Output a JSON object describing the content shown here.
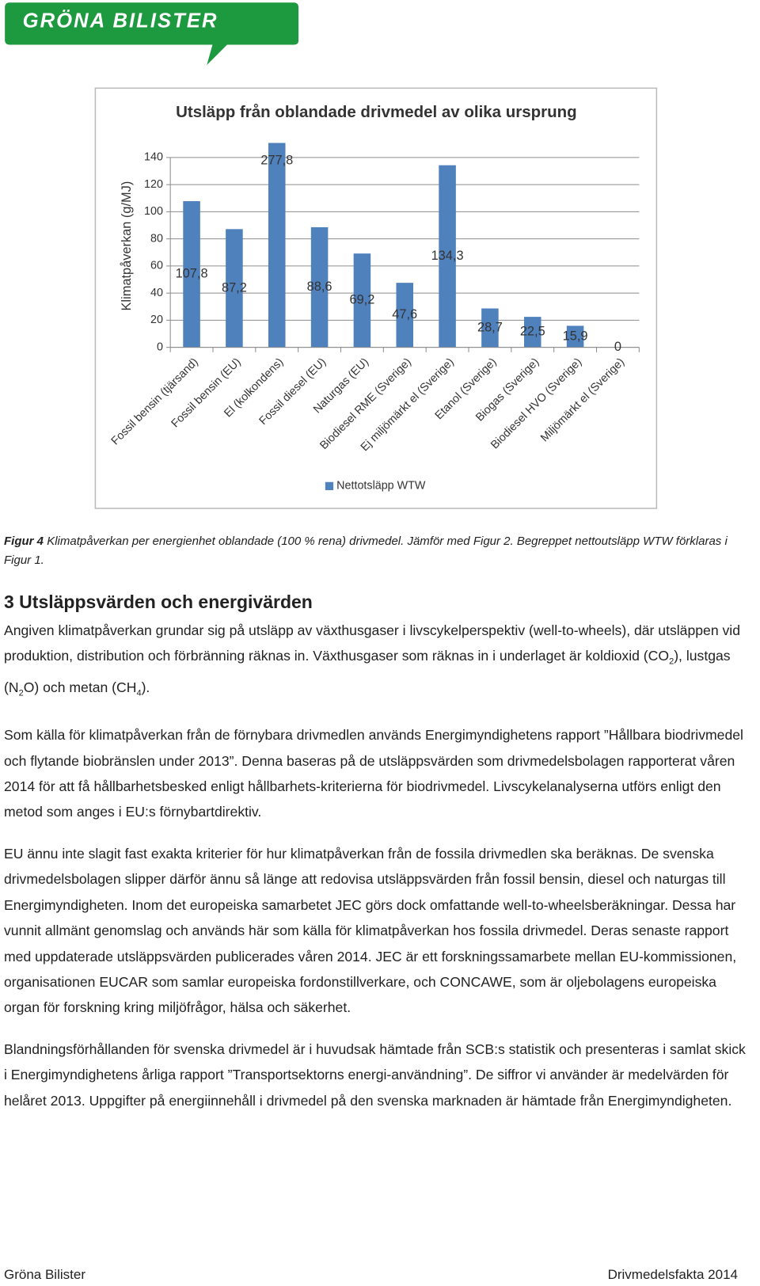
{
  "header": {
    "logo": "GRÖNA BILISTER"
  },
  "chart_data": {
    "type": "bar",
    "title": "Utsläpp från oblandade drivmedel av olika ursprung",
    "y_label": "Klimatpåverkan (g/MJ)",
    "categories": [
      "Fossil bensin (tjärsand)",
      "Fossil bensin (EU)",
      "El (kolkondens)",
      "Fossil diesel (EU)",
      "Naturgas (EU)",
      "Biodiesel RME (Sverige)",
      "Ej miljömärkt el (Sverige)",
      "Etanol (Sverige)",
      "Biogas (Sverige)",
      "Biodiesel HVO (Sverige)",
      "Miljömärkt el (Sverige)"
    ],
    "series": [
      {
        "name": "Nettotsläpp WTW",
        "color": "#4f81bd",
        "values": [
          107.8,
          87.2,
          277.8,
          88.6,
          69.2,
          47.6,
          134.3,
          28.7,
          22.5,
          15.9,
          0
        ],
        "value_labels": [
          "107,8",
          "87,2",
          "277,8",
          "88,6",
          "69,2",
          "47,6",
          "134,3",
          "28,7",
          "22,5",
          "15,9",
          "0"
        ]
      }
    ],
    "ylim": [
      0,
      140
    ],
    "yticks": [
      0,
      20,
      40,
      60,
      80,
      100,
      120,
      140
    ],
    "grid": true,
    "legend": "bottom"
  },
  "caption": {
    "label": "Figur 4",
    "text": "Klimatpåverkan per energienhet oblandade (100 % rena) drivmedel. Jämför med Figur 2. Begreppet nettoutsläpp WTW förklaras i Figur 1."
  },
  "section": {
    "heading": "3 Utsläppsvärden och energivärden",
    "paragraph_1": [
      "Angiven klimatpåverkan grundar sig på utsläpp av växthusgaser i livscykelperspektiv (well-to-wheels), där utsläppen vid produktion, distribution och förbränning räknas in. Växthusgaser som räknas in i underlaget är koldioxid (CO",
      "2",
      "), lustgas (N",
      "2",
      "O) och metan (CH",
      "4",
      ")."
    ],
    "paragraph_2": "Som källa för klimatpåverkan från de förnybara drivmedlen används Energimyndighetens rapport ”Hållbara biodrivmedel och flytande biobränslen under 2013”. Denna baseras på de utsläppsvärden som drivmedelsbolagen rapporterat våren 2014 för att få hållbarhetsbesked enligt hållbarhets-kriterierna för biodrivmedel. Livscykelanalyserna utförs enligt den metod som anges i EU:s förnybartdirektiv.",
    "paragraph_3": "EU ännu inte slagit fast exakta kriterier för hur klimatpåverkan från de fossila drivmedlen ska beräknas. De svenska drivmedelsbolagen slipper därför ännu så länge att redovisa utsläppsvärden från fossil bensin, diesel och naturgas till Energimyndigheten. Inom det europeiska samarbetet JEC görs dock omfattande well-to-wheelsberäkningar. Dessa har vunnit allmänt genomslag och används här som källa för klimatpåverkan hos fossila drivmedel. Deras senaste rapport med uppdaterade utsläppsvärden publicerades våren 2014. JEC är ett forskningssamarbete mellan EU-kommissionen, organisationen EUCAR som samlar europeiska fordonstillverkare, och CONCAWE, som är oljebolagens europeiska organ för forskning kring miljöfrågor, hälsa och säkerhet.",
    "paragraph_4": "Blandningsförhållanden för svenska drivmedel är i huvudsak hämtade från SCB:s statistik och presenteras i samlat skick i Energimyndighetens årliga rapport ”Transportsektorns energi-användning”. De siffror vi använder är medelvärden för helåret 2013. Uppgifter på energiinnehåll i drivmedel på den svenska marknaden är hämtade från Energimyndigheten."
  },
  "footer": {
    "left": "Gröna Bilister",
    "right": "Drivmedelsfakta 2014"
  }
}
